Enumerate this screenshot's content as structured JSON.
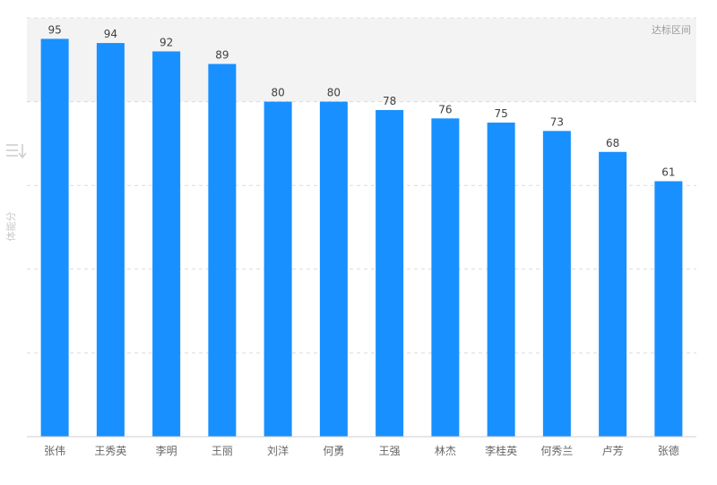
{
  "chart_data": {
    "type": "bar",
    "title": "",
    "xlabel": "",
    "ylabel": "体能分",
    "categories": [
      "张伟",
      "王秀英",
      "李明",
      "王丽",
      "刘洋",
      "何勇",
      "王强",
      "林杰",
      "李桂英",
      "何秀兰",
      "卢芳",
      "张德"
    ],
    "values": [
      95,
      94,
      92,
      89,
      80,
      80,
      78,
      76,
      75,
      73,
      68,
      61
    ],
    "ylim": [
      0,
      100
    ],
    "gridlines": [
      20,
      40,
      60,
      80,
      100
    ],
    "grid": true,
    "data_labels": true,
    "bar_color": "#1890ff",
    "highlight_band": {
      "label": "达标区间",
      "from": 80,
      "to": 100,
      "color": "#f3f3f3"
    },
    "sort_icon": "sort-descending-icon"
  }
}
